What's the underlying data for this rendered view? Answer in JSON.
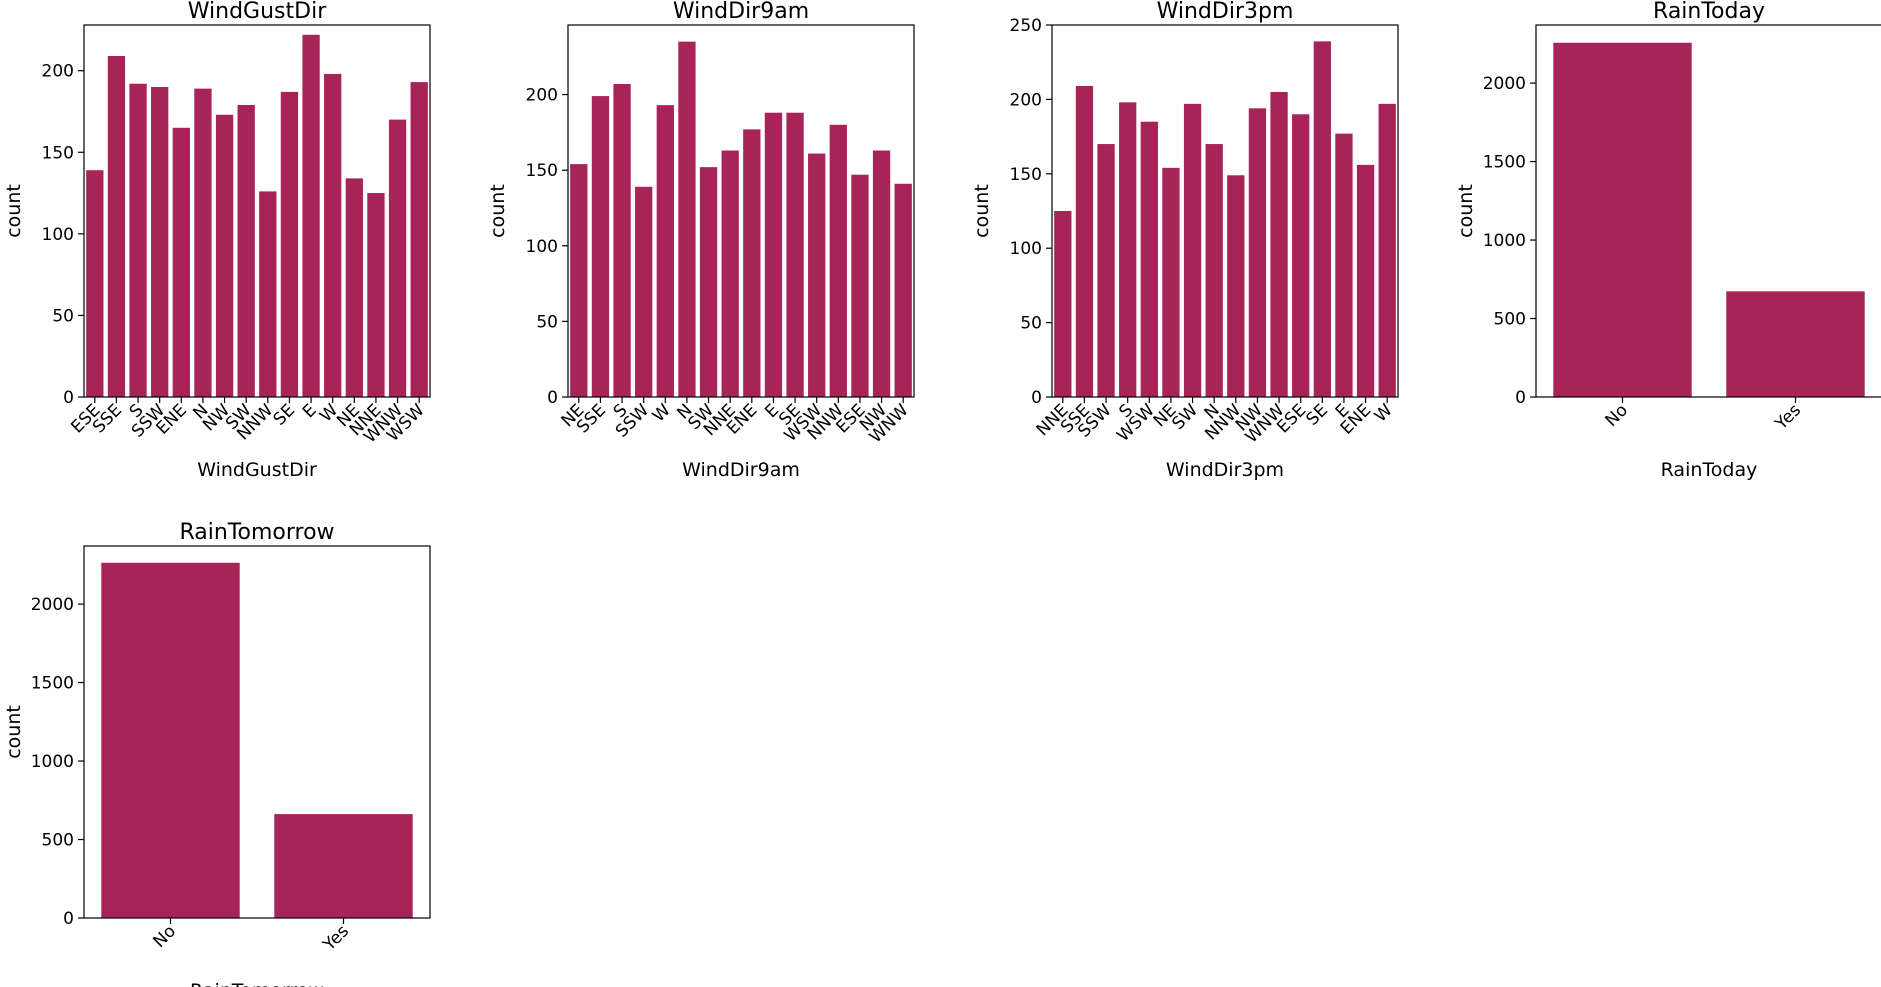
{
  "style": {
    "bar_color": "#a82357"
  },
  "chart_data": [
    {
      "type": "bar",
      "title": "WindGustDir",
      "xlabel": "WindGustDir",
      "ylabel": "count",
      "ylim": [
        0,
        228
      ],
      "yticks": [
        0,
        50,
        100,
        150,
        200
      ],
      "categories": [
        "ESE",
        "SSE",
        "S",
        "SSW",
        "ENE",
        "N",
        "NW",
        "SW",
        "NNW",
        "SE",
        "E",
        "W",
        "NE",
        "NNE",
        "WNW",
        "WSW"
      ],
      "values": [
        139,
        209,
        192,
        190,
        165,
        189,
        173,
        179,
        126,
        187,
        222,
        198,
        134,
        125,
        170,
        193
      ]
    },
    {
      "type": "bar",
      "title": "WindDir9am",
      "xlabel": "WindDir9am",
      "ylabel": "count",
      "ylim": [
        0,
        246
      ],
      "yticks": [
        0,
        50,
        100,
        150,
        200
      ],
      "categories": [
        "NE",
        "SSE",
        "S",
        "SSW",
        "W",
        "N",
        "SW",
        "NNE",
        "ENE",
        "E",
        "SE",
        "WSW",
        "NNW",
        "ESE",
        "NW",
        "WNW"
      ],
      "values": [
        154,
        199,
        207,
        139,
        193,
        235,
        152,
        163,
        177,
        188,
        188,
        161,
        180,
        147,
        163,
        141
      ]
    },
    {
      "type": "bar",
      "title": "WindDir3pm",
      "xlabel": "WindDir3pm",
      "ylabel": "count",
      "ylim": [
        0,
        250
      ],
      "yticks": [
        0,
        50,
        100,
        150,
        200,
        250
      ],
      "categories": [
        "NNE",
        "SSE",
        "SSW",
        "S",
        "WSW",
        "NE",
        "SW",
        "N",
        "NNW",
        "NW",
        "WNW",
        "ESE",
        "SE",
        "E",
        "ENE",
        "W"
      ],
      "values": [
        125,
        209,
        170,
        198,
        185,
        154,
        197,
        170,
        149,
        194,
        205,
        190,
        239,
        177,
        156,
        197
      ]
    },
    {
      "type": "bar",
      "title": "RainToday",
      "xlabel": "RainToday",
      "ylabel": "count",
      "ylim": [
        0,
        2370
      ],
      "yticks": [
        0,
        500,
        1000,
        1500,
        2000
      ],
      "categories": [
        "No",
        "Yes"
      ],
      "values": [
        2257,
        673
      ]
    },
    {
      "type": "bar",
      "title": "RainTomorrow",
      "xlabel": "RainTomorrow",
      "ylabel": "count",
      "ylim": [
        0,
        2370
      ],
      "yticks": [
        0,
        500,
        1000,
        1500,
        2000
      ],
      "categories": [
        "No",
        "Yes"
      ],
      "values": [
        2263,
        662
      ]
    }
  ]
}
